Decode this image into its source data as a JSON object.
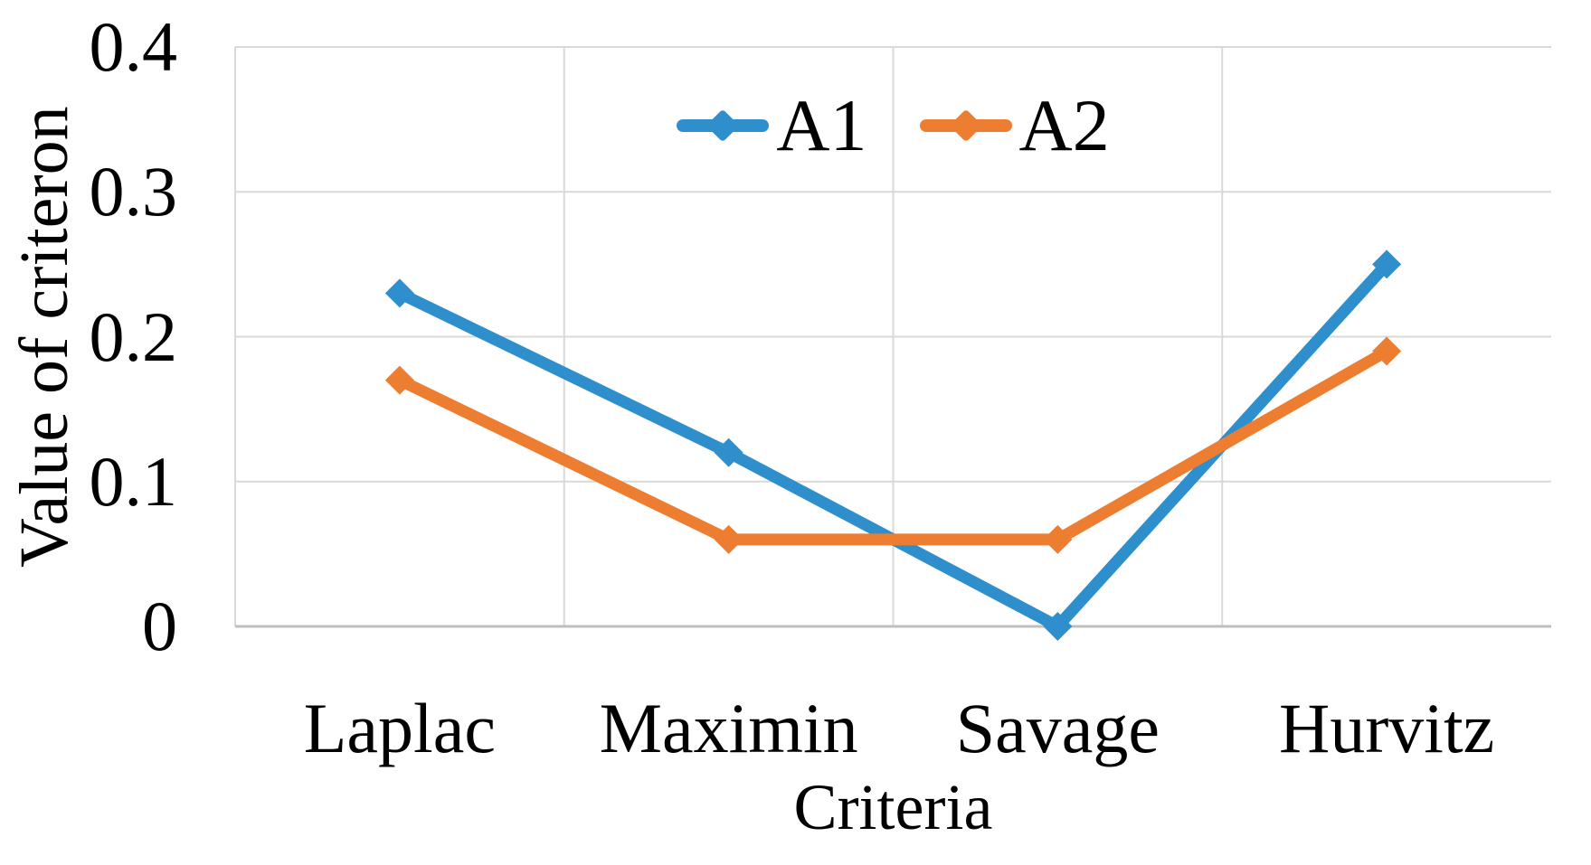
{
  "chart_data": {
    "type": "line",
    "title": "",
    "categories": [
      "Laplac",
      "Maximin",
      "Savage",
      "Hurvitz"
    ],
    "series": [
      {
        "name": "A1",
        "color": "#2E8FCC",
        "values": [
          0.23,
          0.12,
          0.0,
          0.25
        ]
      },
      {
        "name": "A2",
        "color": "#ED7D31",
        "values": [
          0.17,
          0.06,
          0.06,
          0.19
        ]
      }
    ],
    "xlabel": "Criteria",
    "ylabel": "Value of criteron",
    "ylim": [
      0,
      0.4
    ],
    "yticks": [
      0,
      0.1,
      0.2,
      0.3,
      0.4
    ],
    "ytick_labels": [
      "0",
      "0.1",
      "0.2",
      "0.3",
      "0.4"
    ],
    "grid": true,
    "legend_position": "top-center",
    "marker": "diamond"
  },
  "colors": {
    "grid": "#D9D9D9",
    "axis": "#BFBFBF",
    "text": "#000000",
    "background": "#FFFFFF"
  }
}
